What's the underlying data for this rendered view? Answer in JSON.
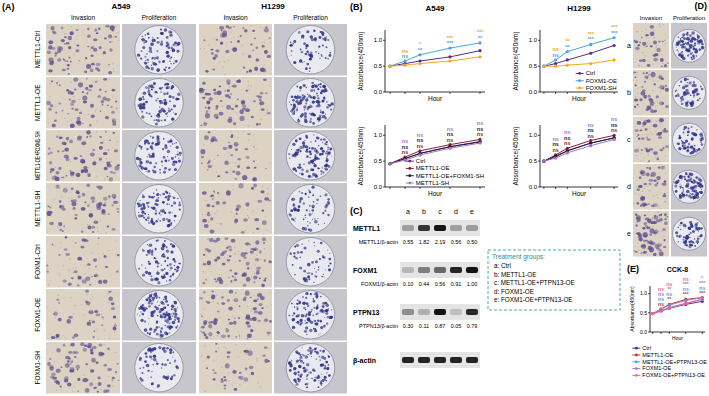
{
  "chart_data": [
    {
      "type": "line",
      "title": "A549",
      "x_label": "Hour",
      "y_label": "Absorbance(450nm)",
      "x": [
        0,
        12,
        24,
        48,
        72
      ],
      "xlim": [
        -4,
        76
      ],
      "xticks": [
        0,
        12,
        24,
        48,
        72
      ],
      "ylim": [
        0,
        1.2
      ],
      "yticks": [
        {
          "value": 0,
          "label": "0.0"
        },
        {
          "value": 0.5,
          "label": "0.5"
        },
        {
          "value": 1,
          "label": "1.0"
        }
      ],
      "tick_labels": "y",
      "marker": "circle",
      "series": [
        {
          "name": "Ctrl",
          "color": "#5b2c83",
          "values": [
            0.5,
            0.55,
            0.6,
            0.68,
            0.8
          ]
        },
        {
          "name": "FOXM1-OE",
          "color": "#4aa3df",
          "values": [
            0.5,
            0.6,
            0.72,
            0.85,
            0.95
          ],
          "significance": [
            null,
            "ns",
            "**",
            "***",
            "**"
          ]
        },
        {
          "name": "FOXM1-SH",
          "color": "#f5a623",
          "values": [
            0.5,
            0.52,
            0.55,
            0.6,
            0.68
          ],
          "significance": [
            null,
            "ns",
            "*",
            "***",
            "***"
          ]
        }
      ]
    },
    {
      "type": "line",
      "title": "H1299",
      "x_label": "Hour",
      "y_label": "Absorbance(450nm)",
      "x": [
        0,
        12,
        24,
        48,
        72
      ],
      "xlim": [
        -4,
        76
      ],
      "xticks": [
        0,
        12,
        24,
        48,
        72
      ],
      "ylim": [
        0,
        1.2
      ],
      "yticks": [
        {
          "value": 0,
          "label": "0.0"
        },
        {
          "value": 0.5,
          "label": "0.5"
        },
        {
          "value": 1,
          "label": "1.0"
        }
      ],
      "tick_labels": "y",
      "marker": "circle",
      "legend": "lower right",
      "series": [
        {
          "name": "Ctrl",
          "color": "#5b2c83",
          "values": [
            0.5,
            0.55,
            0.62,
            0.75,
            0.9
          ]
        },
        {
          "name": "FOXM1-OE",
          "color": "#4aa3df",
          "values": [
            0.5,
            0.62,
            0.78,
            0.92,
            1.05
          ],
          "significance": [
            null,
            "ns",
            "**",
            "***",
            "***"
          ]
        },
        {
          "name": "FOXM1-SH",
          "color": "#f5a623",
          "values": [
            0.5,
            0.5,
            0.52,
            0.55,
            0.62
          ],
          "significance": [
            null,
            "ns",
            "**",
            "***",
            "***"
          ]
        }
      ]
    },
    {
      "type": "line",
      "x_label": "Hour",
      "y_label": "Absorbance(450nm)",
      "x": [
        0,
        12,
        24,
        48,
        72
      ],
      "xlim": [
        -4,
        76
      ],
      "xticks": [
        0,
        12,
        24,
        48,
        72
      ],
      "ylim": [
        0,
        1.2
      ],
      "yticks": [
        {
          "value": 0,
          "label": "0.0"
        },
        {
          "value": 0.5,
          "label": "0.5"
        },
        {
          "value": 1,
          "label": "1.0"
        }
      ],
      "tick_labels": "y",
      "marker": "circle",
      "legend": "lower right",
      "series": [
        {
          "name": "Ctrl",
          "color": "#5b2c83",
          "values": [
            0.45,
            0.55,
            0.65,
            0.78,
            0.88
          ]
        },
        {
          "name": "METTL1-OE",
          "color": "#8b1e2b",
          "values": [
            0.45,
            0.58,
            0.7,
            0.82,
            0.92
          ],
          "significance": [
            null,
            "ns",
            "ns",
            "ns",
            "ns"
          ]
        },
        {
          "name": "METTL1-OE+FOXM1-SH",
          "color": "#1a2040",
          "values": [
            0.45,
            0.55,
            0.65,
            0.78,
            0.87
          ],
          "significance": [
            null,
            "ns",
            "ns",
            "ns",
            "ns"
          ]
        },
        {
          "name": "METTL1-SH",
          "color": "#a675c0",
          "values": [
            0.45,
            0.52,
            0.62,
            0.75,
            0.85
          ],
          "significance": [
            null,
            "ns",
            "ns",
            "ns",
            "ns"
          ]
        }
      ]
    },
    {
      "type": "line",
      "x_label": "Hour",
      "y_label": "Absorbance(450nm)",
      "x": [
        0,
        12,
        24,
        48,
        72
      ],
      "xlim": [
        -4,
        76
      ],
      "xticks": [
        0,
        12,
        24,
        48,
        72
      ],
      "ylim": [
        0,
        1.2
      ],
      "yticks": [
        {
          "value": 0,
          "label": "0.0"
        },
        {
          "value": 0.5,
          "label": "0.5"
        },
        {
          "value": 1,
          "label": "1.0"
        }
      ],
      "tick_labels": "y",
      "marker": "circle",
      "series": [
        {
          "name": "Ctrl",
          "color": "#5b2c83",
          "values": [
            0.5,
            0.58,
            0.7,
            0.85,
            0.95
          ]
        },
        {
          "name": "METTL1-OE",
          "color": "#8b1e2b",
          "values": [
            0.5,
            0.62,
            0.75,
            0.9,
            1.0
          ],
          "significance": [
            null,
            "ns",
            "ns",
            "ns",
            "ns"
          ]
        },
        {
          "name": "METTL1-OE+FOXM1-SH",
          "color": "#1a2040",
          "values": [
            0.5,
            0.6,
            0.7,
            0.85,
            0.95
          ],
          "significance": [
            null,
            "ns",
            "ns",
            "ns",
            "ns"
          ]
        },
        {
          "name": "METTL1-SH",
          "color": "#a675c0",
          "values": [
            0.5,
            0.56,
            0.66,
            0.8,
            0.92
          ],
          "significance": [
            null,
            "ns",
            "ns",
            "ns",
            "ns"
          ]
        }
      ]
    },
    {
      "type": "line",
      "title": "CCK-8",
      "x_label": "Hour",
      "y_label": "Absorbance(450nm)",
      "x": [
        0,
        12,
        24,
        48,
        72
      ],
      "xlim": [
        -4,
        76
      ],
      "xticks": [
        0,
        12,
        24,
        48,
        72
      ],
      "ylim": [
        0,
        1.2
      ],
      "yticks": [
        {
          "value": 0,
          "label": "0.0"
        },
        {
          "value": 0.5,
          "label": "0.5"
        },
        {
          "value": 1,
          "label": "1.0"
        }
      ],
      "tick_labels": "y",
      "marker": "circle",
      "legend": "bottom",
      "series": [
        {
          "name": "Ctrl",
          "color": "#5b2c83",
          "values": [
            0.48,
            0.55,
            0.62,
            0.72,
            0.8
          ]
        },
        {
          "name": "METTL1-OE",
          "color": "#c0392b",
          "values": [
            0.48,
            0.6,
            0.72,
            0.85,
            0.9
          ],
          "significance": [
            null,
            "ns",
            "**",
            "***",
            "***"
          ]
        },
        {
          "name": "METTL1-OE+PTPN13-OE",
          "color": "#4aa3df",
          "values": [
            0.48,
            0.56,
            0.64,
            0.75,
            0.85
          ],
          "significance": [
            null,
            "ns",
            "ns",
            "ns",
            "ns"
          ]
        },
        {
          "name": "FOXM1-OE",
          "color": "#a675c0",
          "values": [
            0.48,
            0.6,
            0.7,
            0.82,
            0.9
          ],
          "significance": [
            null,
            "ns",
            "**",
            "***",
            "***"
          ]
        },
        {
          "name": "FOXM1-OE+PTPN13-OE",
          "color": "#f06292",
          "values": [
            0.48,
            0.55,
            0.62,
            0.74,
            0.86
          ],
          "significance": [
            null,
            "ns",
            "ns",
            "ns",
            "*"
          ]
        }
      ]
    }
  ],
  "panels": {
    "A": "(A)",
    "B": "(B)",
    "C": "(C)",
    "D": "(D)",
    "E": "(E)"
  },
  "panel_a": {
    "cell_lines": [
      "A549",
      "H1299"
    ],
    "assays": [
      "Invasion",
      "Proliferation"
    ],
    "rows": [
      "METTL1-Ctrl",
      "METTL1-OE",
      "METTL1-OE+FOXM1-SH",
      "METTL1-SH",
      "FOXM1-Ctrl",
      "FOXM1-OE",
      "FOXM1-SH"
    ]
  },
  "panel_c": {
    "lanes": [
      "a",
      "b",
      "c",
      "d",
      "e"
    ],
    "blots": [
      {
        "name": "METTL1",
        "ratio_label": "METTL1/β-actin",
        "ratios": [
          "0.55",
          "1.82",
          "2.19",
          "0.56",
          "0.50"
        ]
      },
      {
        "name": "FOXM1",
        "ratio_label": "FOXM1/β-actin",
        "ratios": [
          "0.10",
          "0.44",
          "0.56",
          "0.91",
          "1.00"
        ]
      },
      {
        "name": "PTPN13",
        "ratio_label": "PTPN13/β-actin",
        "ratios": [
          "0.30",
          "0.11",
          "0.87",
          "0.05",
          "0.79"
        ]
      },
      {
        "name": "β-actin"
      }
    ],
    "legend_title": "Treatment groups:",
    "groups": [
      "a: Ctrl",
      "b: METTL1-OE",
      "c: METTL1-OE+PTPN13-OE",
      "d: FOXM1-OE",
      "e: FOXM1-OE+PTPN13-OE"
    ]
  },
  "panel_d": {
    "assays": [
      "Invasion",
      "Proliferation"
    ],
    "rows": [
      "a",
      "b",
      "c",
      "d",
      "e"
    ]
  }
}
